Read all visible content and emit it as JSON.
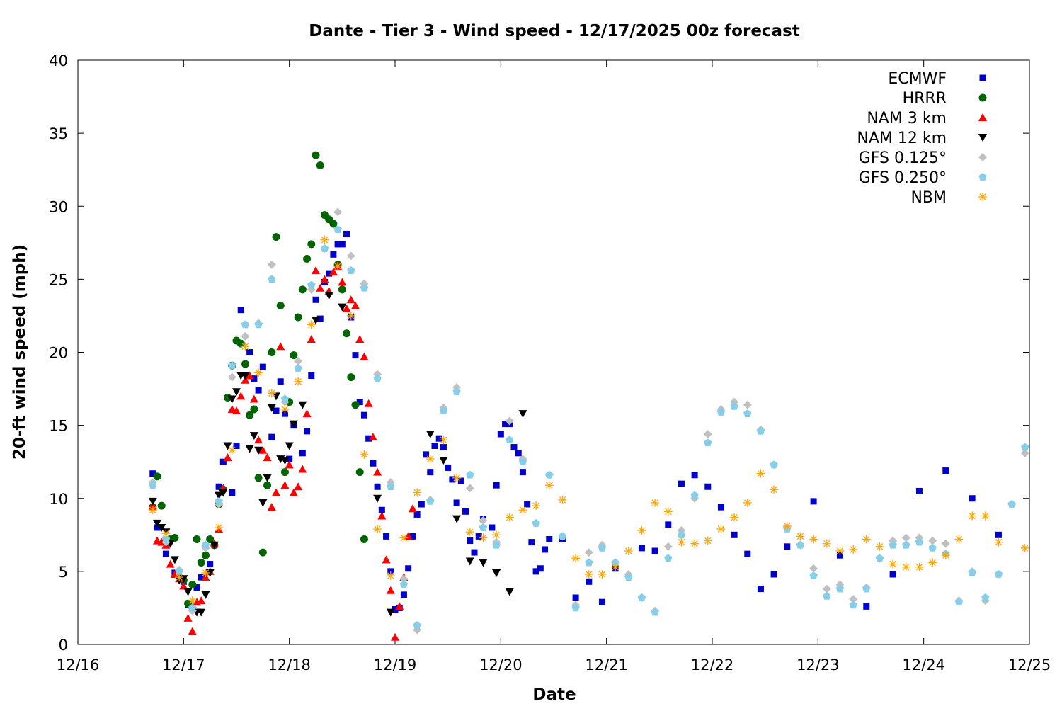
{
  "chart_data": {
    "type": "scatter",
    "title": "Dante - Tier 3 - Wind speed - 12/17/2025 00z forecast",
    "xlabel": "Date",
    "ylabel": "20-ft wind speed (mph)",
    "xlim": [
      "12/16 00",
      "12/25 00"
    ],
    "ylim": [
      0,
      40
    ],
    "x_ticks": [
      "12/16",
      "12/17",
      "12/18",
      "12/19",
      "12/20",
      "12/21",
      "12/22",
      "12/23",
      "12/24",
      "12/25"
    ],
    "y_ticks": [
      0,
      5,
      10,
      15,
      20,
      25,
      30,
      35,
      40
    ],
    "grid": false,
    "legend_position": "top-right",
    "series": [
      {
        "name": "ECMWF",
        "color": "#0000cc",
        "marker": "square",
        "points": [
          [
            "12/16 17",
            11.7
          ],
          [
            "12/16 18",
            8.0
          ],
          [
            "12/16 20",
            6.2
          ],
          [
            "12/16 22",
            4.9
          ],
          [
            "12/17 00",
            4.3
          ],
          [
            "12/17 01",
            2.7
          ],
          [
            "12/17 03",
            3.9
          ],
          [
            "12/17 04",
            4.6
          ],
          [
            "12/17 06",
            5.5
          ],
          [
            "12/17 07",
            6.8
          ],
          [
            "12/17 08",
            10.8
          ],
          [
            "12/17 09",
            12.5
          ],
          [
            "12/17 11",
            10.4
          ],
          [
            "12/17 12",
            13.6
          ],
          [
            "12/17 13",
            22.9
          ],
          [
            "12/17 15",
            20.0
          ],
          [
            "12/17 16",
            18.2
          ],
          [
            "12/17 17",
            17.4
          ],
          [
            "12/17 18",
            19.0
          ],
          [
            "12/17 20",
            14.2
          ],
          [
            "12/17 21",
            16.0
          ],
          [
            "12/17 22",
            18.0
          ],
          [
            "12/17 23",
            15.8
          ],
          [
            "12/18 00",
            12.7
          ],
          [
            "12/18 01",
            15.0
          ],
          [
            "12/18 03",
            13.1
          ],
          [
            "12/18 04",
            14.6
          ],
          [
            "12/18 05",
            18.4
          ],
          [
            "12/18 06",
            23.6
          ],
          [
            "12/18 07",
            22.3
          ],
          [
            "12/18 08",
            24.8
          ],
          [
            "12/18 09",
            25.4
          ],
          [
            "12/18 10",
            26.7
          ],
          [
            "12/18 11",
            27.4
          ],
          [
            "12/18 12",
            27.4
          ],
          [
            "12/18 13",
            28.1
          ],
          [
            "12/18 14",
            22.4
          ],
          [
            "12/18 15",
            19.8
          ],
          [
            "12/18 16",
            16.6
          ],
          [
            "12/18 17",
            15.7
          ],
          [
            "12/18 18",
            14.1
          ],
          [
            "12/18 19",
            12.4
          ],
          [
            "12/18 20",
            10.8
          ],
          [
            "12/18 21",
            9.2
          ],
          [
            "12/18 22",
            7.4
          ],
          [
            "12/18 23",
            5.0
          ],
          [
            "12/19 00",
            2.4
          ],
          [
            "12/19 01",
            2.5
          ],
          [
            "12/19 02",
            3.4
          ],
          [
            "12/19 03",
            5.2
          ],
          [
            "12/19 04",
            7.4
          ],
          [
            "12/19 05",
            8.9
          ],
          [
            "12/19 06",
            9.6
          ],
          [
            "12/19 07",
            13.0
          ],
          [
            "12/19 08",
            11.8
          ],
          [
            "12/19 09",
            13.6
          ],
          [
            "12/19 10",
            14.1
          ],
          [
            "12/19 11",
            13.5
          ],
          [
            "12/19 12",
            12.1
          ],
          [
            "12/19 13",
            11.3
          ],
          [
            "12/19 14",
            9.7
          ],
          [
            "12/19 15",
            11.2
          ],
          [
            "12/19 16",
            9.1
          ],
          [
            "12/19 17",
            7.1
          ],
          [
            "12/19 18",
            6.3
          ],
          [
            "12/19 19",
            7.4
          ],
          [
            "12/19 20",
            8.6
          ],
          [
            "12/19 22",
            8.0
          ],
          [
            "12/19 23",
            10.9
          ],
          [
            "12/20 00",
            14.4
          ],
          [
            "12/20 01",
            15.1
          ],
          [
            "12/20 02",
            15.1
          ],
          [
            "12/20 03",
            13.5
          ],
          [
            "12/20 04",
            13.1
          ],
          [
            "12/20 05",
            11.8
          ],
          [
            "12/20 06",
            9.6
          ],
          [
            "12/20 07",
            7.0
          ],
          [
            "12/20 08",
            5.0
          ],
          [
            "12/20 09",
            5.2
          ],
          [
            "12/20 10",
            6.5
          ],
          [
            "12/20 11",
            7.2
          ],
          [
            "12/20 14",
            7.2
          ],
          [
            "12/20 17",
            3.2
          ],
          [
            "12/20 20",
            4.3
          ],
          [
            "12/20 23",
            2.9
          ],
          [
            "12/21 02",
            5.2
          ],
          [
            "12/21 08",
            6.6
          ],
          [
            "12/21 11",
            6.4
          ],
          [
            "12/21 14",
            8.2
          ],
          [
            "12/21 17",
            11.0
          ],
          [
            "12/21 20",
            11.6
          ],
          [
            "12/21 23",
            10.8
          ],
          [
            "12/22 02",
            9.4
          ],
          [
            "12/22 05",
            7.5
          ],
          [
            "12/22 08",
            6.2
          ],
          [
            "12/22 11",
            3.8
          ],
          [
            "12/22 14",
            4.8
          ],
          [
            "12/22 17",
            6.7
          ],
          [
            "12/22 23",
            9.8
          ],
          [
            "12/23 05",
            6.1
          ],
          [
            "12/23 11",
            2.6
          ],
          [
            "12/23 17",
            4.8
          ],
          [
            "12/23 23",
            10.5
          ],
          [
            "12/24 05",
            11.9
          ],
          [
            "12/24 11",
            10.0
          ],
          [
            "12/24 17",
            7.5
          ]
        ]
      },
      {
        "name": "HRRR",
        "color": "#006400",
        "marker": "circle",
        "start": "12/16 17",
        "step_hours": 1,
        "values": [
          9.4,
          11.5,
          9.5,
          7.0,
          7.2,
          7.3,
          4.6,
          4.4,
          2.8,
          4.1,
          7.2,
          5.6,
          6.1,
          7.2,
          6.8,
          9.6,
          10.6,
          16.9,
          19.1,
          20.8,
          20.6,
          19.2,
          15.7,
          16.1,
          11.4,
          6.3,
          10.9,
          20.0,
          27.9,
          23.2,
          11.8,
          16.6,
          19.8,
          22.4,
          24.3,
          26.4,
          27.4,
          33.5,
          32.8,
          29.4,
          29.1,
          28.8,
          26.0,
          24.3,
          21.3,
          18.3,
          16.4,
          11.8,
          7.2
        ]
      },
      {
        "name": "NAM 3 km",
        "color": "#ff0000",
        "marker": "triangle-up",
        "start": "12/16 17",
        "step_hours": 1,
        "values": [
          9.5,
          7.1,
          7.0,
          6.8,
          5.5,
          4.8,
          4.5,
          4.0,
          1.8,
          0.9,
          2.9,
          3.0,
          4.6,
          5.0,
          6.9,
          7.9,
          10.7,
          12.8,
          16.1,
          16.0,
          17.0,
          18.1,
          18.4,
          16.8,
          14.0,
          13.3,
          12.8,
          9.4,
          10.4,
          20.4,
          10.9,
          12.3,
          10.4,
          10.8,
          12.0,
          15.8,
          20.9,
          25.6,
          24.4,
          25.0,
          24.2,
          25.5,
          25.9,
          24.8,
          23.0,
          23.6,
          23.2,
          20.9,
          19.7,
          16.5,
          14.2,
          11.8,
          8.8,
          5.8,
          3.7,
          0.5,
          2.6,
          4.6,
          7.4,
          9.3
        ]
      },
      {
        "name": "NAM 12 km",
        "color": "#000000",
        "marker": "triangle-down",
        "points": [
          [
            "12/16 17",
            9.8
          ],
          [
            "12/16 18",
            8.3
          ],
          [
            "12/16 19",
            8.0
          ],
          [
            "12/16 20",
            7.7
          ],
          [
            "12/16 21",
            6.9
          ],
          [
            "12/16 22",
            5.8
          ],
          [
            "12/16 23",
            4.4
          ],
          [
            "12/17 00",
            4.5
          ],
          [
            "12/17 01",
            3.6
          ],
          [
            "12/17 02",
            2.3
          ],
          [
            "12/17 03",
            2.2
          ],
          [
            "12/17 04",
            2.2
          ],
          [
            "12/17 05",
            3.4
          ],
          [
            "12/17 06",
            4.9
          ],
          [
            "12/17 07",
            6.8
          ],
          [
            "12/17 08",
            10.2
          ],
          [
            "12/17 09",
            10.4
          ],
          [
            "12/17 10",
            13.6
          ],
          [
            "12/17 11",
            16.8
          ],
          [
            "12/17 12",
            17.3
          ],
          [
            "12/17 13",
            18.4
          ],
          [
            "12/17 14",
            18.4
          ],
          [
            "12/17 15",
            13.4
          ],
          [
            "12/17 16",
            14.3
          ],
          [
            "12/17 17",
            13.3
          ],
          [
            "12/17 18",
            9.7
          ],
          [
            "12/17 19",
            11.4
          ],
          [
            "12/17 20",
            16.2
          ],
          [
            "12/17 21",
            17.0
          ],
          [
            "12/17 22",
            12.7
          ],
          [
            "12/17 23",
            12.6
          ],
          [
            "12/18 00",
            13.6
          ],
          [
            "12/18 01",
            15.1
          ],
          [
            "12/18 03",
            16.4
          ],
          [
            "12/18 06",
            22.2
          ],
          [
            "12/18 09",
            23.9
          ],
          [
            "12/18 12",
            23.1
          ],
          [
            "12/18 20",
            10.0
          ],
          [
            "12/18 23",
            2.2
          ],
          [
            "12/19 08",
            14.4
          ],
          [
            "12/19 11",
            12.6
          ],
          [
            "12/19 14",
            8.6
          ],
          [
            "12/19 17",
            5.7
          ],
          [
            "12/19 20",
            5.6
          ],
          [
            "12/19 23",
            4.9
          ],
          [
            "12/20 02",
            3.6
          ],
          [
            "12/20 05",
            15.8
          ]
        ]
      },
      {
        "name": "GFS 0.125°",
        "color": "#c0c0c0",
        "marker": "diamond",
        "start": "12/16 17",
        "step_hours": 3,
        "values": [
          11.1,
          7.0,
          5.1,
          2.3,
          6.6,
          9.6,
          18.3,
          21.1,
          22.0,
          26.0,
          16.6,
          19.4,
          24.3,
          27.1,
          29.6,
          26.6,
          24.7,
          18.5,
          11.1,
          4.5,
          1.0,
          9.9,
          16.2,
          17.6,
          10.7,
          8.5,
          7.0,
          15.3,
          12.7,
          8.3,
          11.6,
          7.4,
          2.7,
          6.3,
          6.8,
          5.6,
          4.8,
          3.2,
          2.3,
          6.7,
          7.8,
          10.0,
          14.4,
          16.1,
          16.6,
          16.4,
          14.7,
          12.3,
          8.0,
          6.8,
          5.2,
          3.8,
          4.1,
          3.1,
          3.9,
          5.9,
          7.1,
          7.3,
          7.3,
          7.1,
          6.9,
          3.0,
          5.0,
          3.0,
          4.8,
          9.6,
          13.1
        ]
      },
      {
        "name": "GFS 0.250°",
        "color": "#87ceeb",
        "marker": "pentagon",
        "start": "12/16 17",
        "step_hours": 3,
        "values": [
          10.9,
          7.2,
          5.0,
          2.5,
          6.8,
          9.8,
          19.1,
          21.9,
          21.9,
          25.0,
          16.8,
          18.9,
          24.6,
          27.1,
          28.4,
          25.6,
          24.4,
          18.2,
          10.8,
          4.1,
          1.3,
          9.8,
          16.0,
          17.3,
          11.6,
          8.0,
          6.8,
          14.0,
          12.5,
          8.3,
          11.6,
          7.4,
          2.5,
          5.6,
          6.6,
          5.6,
          4.6,
          3.2,
          2.2,
          5.9,
          7.5,
          10.2,
          13.8,
          15.9,
          16.3,
          15.8,
          14.6,
          12.3,
          7.9,
          6.8,
          4.7,
          3.3,
          3.8,
          2.7,
          3.8,
          5.9,
          6.8,
          6.8,
          7.0,
          6.6,
          6.2,
          2.9,
          4.9,
          3.2,
          4.8,
          9.6,
          13.5
        ]
      },
      {
        "name": "NBM",
        "color": "#ffa500",
        "marker": "star",
        "start": "12/16 17",
        "step_hours": 3,
        "values": [
          9.2,
          7.6,
          4.6,
          3.0,
          4.9,
          8.0,
          13.3,
          20.4,
          18.6,
          17.2,
          16.1,
          18.0,
          21.9,
          27.7,
          25.9,
          22.5,
          13.0,
          7.9,
          4.7,
          7.3,
          10.4,
          12.7,
          14.0,
          11.4,
          7.7,
          7.3,
          7.5,
          8.7,
          9.2,
          9.5,
          10.9,
          9.9,
          5.9,
          4.8,
          4.8,
          5.3,
          6.4,
          7.8,
          9.7,
          9.1,
          7.0,
          6.9,
          7.1,
          7.9,
          8.7,
          9.7,
          11.7,
          10.6,
          8.1,
          7.4,
          7.2,
          6.9,
          6.4,
          6.5,
          7.2,
          6.7,
          5.5,
          5.3,
          5.3,
          5.6,
          6.1,
          7.2,
          8.8,
          8.8,
          7.0,
          null,
          6.6
        ]
      }
    ]
  }
}
